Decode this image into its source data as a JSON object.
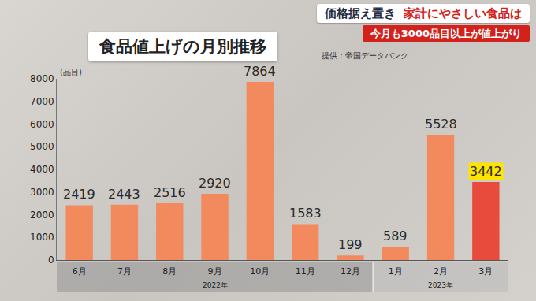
{
  "banner": {
    "left": "価格据え置き",
    "right": "家計にやさしい食品は",
    "sub": "今月も3000品目以上が値上がり"
  },
  "chart_data": {
    "type": "bar",
    "title": "食品値上げの月別推移",
    "source": "提供：帝国データバンク",
    "y_label": "(品目)",
    "categories": [
      "6月",
      "7月",
      "8月",
      "9月",
      "10月",
      "11月",
      "12月",
      "1月",
      "2月",
      "3月"
    ],
    "values": [
      2419,
      2443,
      2516,
      2920,
      7864,
      1583,
      199,
      589,
      5528,
      3442
    ],
    "colors": [
      "#f38a5d",
      "#f38a5d",
      "#f38a5d",
      "#f38a5d",
      "#f38a5d",
      "#f38a5d",
      "#f38a5d",
      "#f38a5d",
      "#f38a5d",
      "#e84a3c"
    ],
    "x_groups": [
      {
        "label": "2022年",
        "categories": [
          "6月",
          "7月",
          "8月",
          "9月",
          "10月",
          "11月",
          "12月"
        ]
      },
      {
        "label": "2023年",
        "categories": [
          "1月",
          "2月",
          "3月"
        ]
      }
    ],
    "ylim": [
      0,
      8000
    ],
    "yticks": [
      0,
      1000,
      2000,
      3000,
      4000,
      5000,
      6000,
      7000,
      8000
    ],
    "data_labels": true,
    "grid": false
  }
}
